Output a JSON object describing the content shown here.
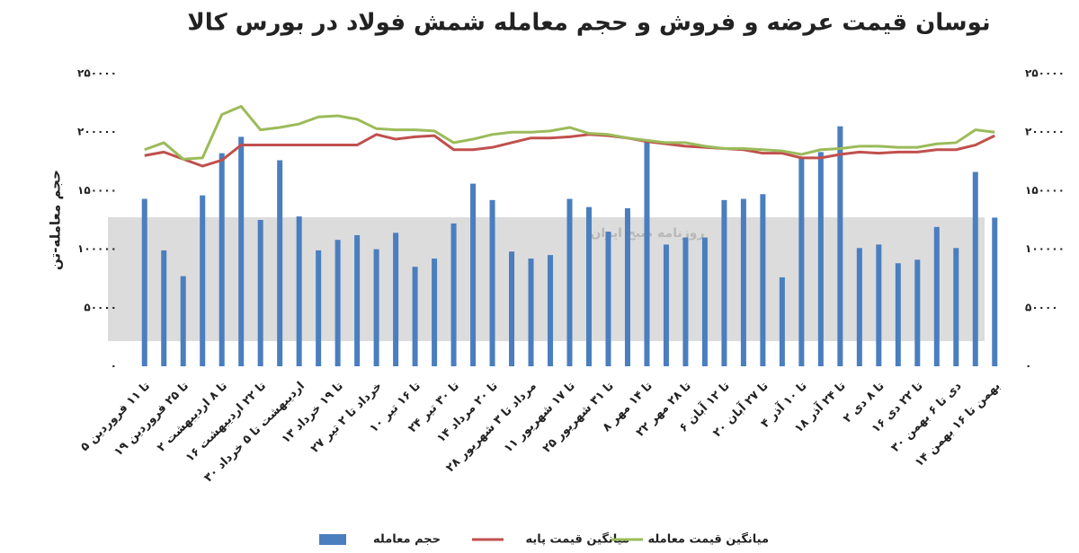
{
  "chart_data": {
    "type": "bar_line",
    "title": "نوسان قیمت عرضه و فروش و حجم معامله شمش فولاد در بورس کالا",
    "ylabel": "حجم معامله-تن",
    "watermark": "روزنامه صبح ایران",
    "categories": [
      "۵ تا ۱۱ فروردین",
      null,
      "۱۹ تا ۲۵ فروردین",
      null,
      "۲ تا ۸ اردیبهشت",
      null,
      "۱۶ تا ۲۲ اردیبهشت",
      null,
      "۳۰ اردیبهشت تا ۵ خرداد",
      null,
      "۱۳ تا ۱۹ خرداد",
      null,
      "۲۷ خرداد تا ۲ تیر",
      null,
      "۱۰ تا ۱۶ تیر",
      null,
      "۲۴ تا ۳۰ تیر",
      null,
      "۱۴ تا ۲۰ مرداد",
      null,
      "۲۸ مرداد تا ۳ شهریور",
      null,
      "۱۱ تا ۱۷ شهریور",
      null,
      "۲۵ تا ۳۱ شهریور",
      null,
      "۸ تا ۱۴ مهر",
      null,
      "۲۲ تا ۲۸ مهر",
      null,
      "۶ تا ۱۲ آبان",
      null,
      "۲۰ تا ۲۷ آبان",
      null,
      "۴ تا ۱۰ آذر",
      null,
      "۱۸ تا ۲۴ آذر",
      null,
      "۲ تا ۸ دی",
      null,
      "۱۶ تا ۲۲ دی",
      null,
      "۳۰ دی تا ۶ بهمن",
      null,
      "۱۴ بهمن تا ۱۶ بهمن"
    ],
    "series": [
      {
        "name": "حجم معامله",
        "kind": "bar",
        "color": "#4a7ebf",
        "values": [
          143000,
          99000,
          77000,
          146000,
          182000,
          196000,
          125000,
          176000,
          128000,
          99000,
          108000,
          112000,
          100000,
          114000,
          85000,
          92000,
          122000,
          156000,
          142000,
          98000,
          92000,
          95000,
          143000,
          136000,
          115000,
          135000,
          192000,
          104000,
          110000,
          110000,
          142000,
          143000,
          147000,
          76000,
          179000,
          183000,
          205000,
          101000,
          104000,
          88000,
          91000,
          119000,
          101000,
          166000,
          127000
        ]
      },
      {
        "name": "میانگین قیمت پایه",
        "kind": "line",
        "color": "#c0504d",
        "values": [
          180000,
          183000,
          177000,
          171000,
          176000,
          189000,
          189000,
          189000,
          189000,
          189000,
          189000,
          189000,
          198000,
          194000,
          196000,
          197000,
          185000,
          185000,
          187000,
          191000,
          195000,
          195000,
          196000,
          198000,
          197000,
          195000,
          192000,
          190000,
          188000,
          187000,
          186000,
          185000,
          182000,
          182000,
          178000,
          178000,
          181000,
          183000,
          182000,
          183000,
          183000,
          185000,
          185000,
          189000,
          197000
        ]
      },
      {
        "name": "میانگین قیمت معامله",
        "kind": "line",
        "color": "#9bbb59",
        "values": [
          185000,
          191000,
          177000,
          178000,
          215000,
          222000,
          202000,
          204000,
          207000,
          213000,
          214000,
          211000,
          203000,
          202000,
          202000,
          201000,
          191000,
          194000,
          198000,
          200000,
          200000,
          201000,
          204000,
          199000,
          198000,
          195000,
          193000,
          191000,
          191000,
          188000,
          186000,
          186000,
          185000,
          184000,
          181000,
          185000,
          186000,
          188000,
          188000,
          187000,
          187000,
          190000,
          191000,
          202000,
          200000
        ]
      }
    ],
    "ylim": [
      0,
      250000
    ],
    "yticks": [
      {
        "value": 0,
        "label": "۰"
      },
      {
        "value": 50000,
        "label": "۵۰۰۰۰"
      },
      {
        "value": 100000,
        "label": "۱۰۰۰۰۰"
      },
      {
        "value": 150000,
        "label": "۱۵۰۰۰۰"
      },
      {
        "value": 200000,
        "label": "۲۰۰۰۰۰"
      },
      {
        "value": 250000,
        "label": "۲۵۰۰۰۰"
      }
    ],
    "y2lim": [
      0,
      250000
    ],
    "y2ticks": [
      {
        "value": 0,
        "label": "۰"
      },
      {
        "value": 50000,
        "label": "۵۰۰۰۰"
      },
      {
        "value": 100000,
        "label": "۱۰۰۰۰۰"
      },
      {
        "value": 150000,
        "label": "۱۵۰۰۰۰"
      },
      {
        "value": 200000,
        "label": "۲۰۰۰۰۰"
      },
      {
        "value": 250000,
        "label": "۲۵۰۰۰۰"
      }
    ],
    "legend": "bottom"
  }
}
